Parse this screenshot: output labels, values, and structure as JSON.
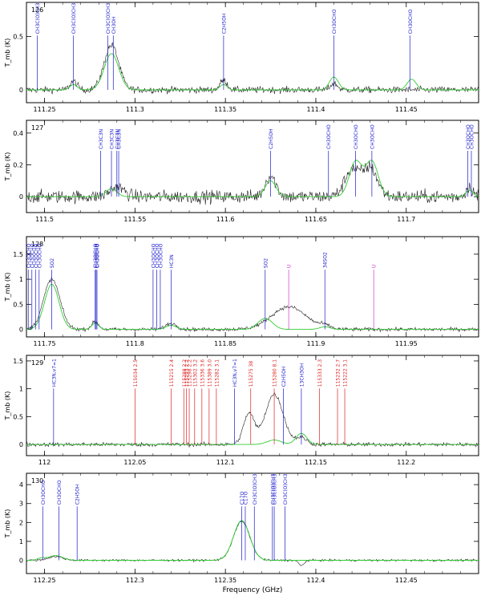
{
  "figure": {
    "xlabel": "Frequency (GHz)",
    "ylabel": "T_mb (K)",
    "colors": {
      "observed": "#222222",
      "model": "#33cc33",
      "blue_label": "#1a1acc",
      "red_label": "#dd2222",
      "magenta_label": "#cc33cc",
      "axis": "#000000"
    }
  },
  "chart_data": [
    {
      "type": "line",
      "panel": "126",
      "xlim": [
        111.24,
        111.49
      ],
      "ylim": [
        -0.12,
        0.82
      ],
      "xticks": [
        111.25,
        111.3,
        111.35,
        111.4,
        111.45
      ],
      "yticks": [
        0,
        0.5
      ],
      "xlabel": "",
      "ylabel": "T_mb (K)",
      "series": [
        {
          "kind": "observed",
          "features": [
            [
              111.287,
              0.42,
              0.004
            ],
            [
              111.266,
              0.08,
              0.002
            ],
            [
              111.349,
              0.09,
              0.002
            ],
            [
              111.41,
              0.06,
              0.002
            ]
          ],
          "noise": 0.03
        },
        {
          "kind": "model",
          "features": [
            [
              111.287,
              0.34,
              0.004
            ],
            [
              111.266,
              0.05,
              0.002
            ],
            [
              111.349,
              0.05,
              0.002
            ],
            [
              111.41,
              0.12,
              0.0025
            ],
            [
              111.453,
              0.1,
              0.0025
            ]
          ]
        }
      ],
      "lines": [
        {
          "f": 111.246,
          "label": "CH3C(O)CH3",
          "color": "blue"
        },
        {
          "f": 111.266,
          "label": "CH3C(O)CH3",
          "color": "blue"
        },
        {
          "f": 111.285,
          "label": "CH3C(O)CH3",
          "color": "blue"
        },
        {
          "f": 111.288,
          "label": "CH3OH",
          "color": "blue"
        },
        {
          "f": 111.349,
          "label": "C2H5OH",
          "color": "blue"
        },
        {
          "f": 111.41,
          "label": "CH3OCHO",
          "color": "blue"
        },
        {
          "f": 111.452,
          "label": "CH3OCHO",
          "color": "blue"
        }
      ]
    },
    {
      "type": "line",
      "panel": "127",
      "xlim": [
        111.49,
        111.74
      ],
      "ylim": [
        -0.1,
        0.48
      ],
      "xticks": [
        111.5,
        111.55,
        111.6,
        111.65,
        111.7
      ],
      "yticks": [
        0,
        0.2,
        0.4
      ],
      "xlabel": "",
      "ylabel": "T_mb (K)",
      "series": [
        {
          "kind": "observed",
          "features": [
            [
              111.54,
              0.06,
              0.004
            ],
            [
              111.625,
              0.13,
              0.003
            ],
            [
              111.67,
              0.17,
              0.004
            ],
            [
              111.68,
              0.18,
              0.004
            ],
            [
              111.735,
              0.06,
              0.002
            ]
          ],
          "noise": 0.04
        },
        {
          "kind": "model",
          "features": [
            [
              111.537,
              0.05,
              0.003
            ],
            [
              111.625,
              0.1,
              0.003
            ],
            [
              111.672,
              0.22,
              0.0035
            ],
            [
              111.681,
              0.22,
              0.0035
            ],
            [
              111.735,
              0.04,
              0.002
            ]
          ]
        }
      ],
      "lines": [
        {
          "f": 111.531,
          "label": "CH3C3N",
          "color": "blue"
        },
        {
          "f": 111.537,
          "label": "CH3C3N",
          "color": "blue"
        },
        {
          "f": 111.54,
          "label": "CH3C3N",
          "color": "blue"
        },
        {
          "f": 111.541,
          "label": "CH3C3N",
          "color": "blue"
        },
        {
          "f": 111.625,
          "label": "C2H5OH",
          "color": "blue"
        },
        {
          "f": 111.657,
          "label": "CH3OCHO",
          "color": "blue"
        },
        {
          "f": 111.672,
          "label": "CH3OCHO",
          "color": "blue"
        },
        {
          "f": 111.681,
          "label": "CH3OCHO",
          "color": "blue"
        },
        {
          "f": 111.734,
          "label": "CH3OCHO",
          "color": "blue"
        },
        {
          "f": 111.736,
          "label": "CH3OCHO",
          "color": "blue"
        }
      ]
    },
    {
      "type": "line",
      "panel": "128",
      "xlim": [
        111.74,
        111.99
      ],
      "ylim": [
        -0.15,
        1.85
      ],
      "xticks": [
        111.75,
        111.8,
        111.85,
        111.9,
        111.95
      ],
      "yticks": [
        0,
        0.5,
        1,
        1.5
      ],
      "xlabel": "",
      "ylabel": "T_mb (K)",
      "series": [
        {
          "kind": "observed",
          "features": [
            [
              111.754,
              1.0,
              0.0045
            ],
            [
              111.778,
              0.15,
              0.002
            ],
            [
              111.82,
              0.12,
              0.003
            ],
            [
              111.885,
              0.45,
              0.0095
            ],
            [
              111.905,
              0.06,
              0.003
            ]
          ],
          "noise": 0.035
        },
        {
          "kind": "model",
          "features": [
            [
              111.754,
              0.9,
              0.004
            ],
            [
              111.778,
              0.12,
              0.002
            ],
            [
              111.82,
              0.08,
              0.003
            ],
            [
              111.872,
              0.22,
              0.004
            ],
            [
              111.905,
              0.05,
              0.003
            ]
          ]
        }
      ],
      "lines": [
        {
          "f": 111.741,
          "label": "CH3OCHO",
          "color": "blue"
        },
        {
          "f": 111.743,
          "label": "CH3OCHO",
          "color": "blue"
        },
        {
          "f": 111.745,
          "label": "CH3OCHO",
          "color": "blue"
        },
        {
          "f": 111.747,
          "label": "CH3OCHO",
          "color": "blue"
        },
        {
          "f": 111.754,
          "label": "SO2",
          "color": "blue"
        },
        {
          "f": 111.778,
          "label": "CH3OCHO",
          "color": "blue"
        },
        {
          "f": 111.7785,
          "label": "CH3OCHO",
          "color": "blue"
        },
        {
          "f": 111.779,
          "label": "CH3OCHO",
          "color": "blue"
        },
        {
          "f": 111.81,
          "label": "CH3OCHO",
          "color": "blue"
        },
        {
          "f": 111.812,
          "label": "CH3OCHO",
          "color": "blue"
        },
        {
          "f": 111.814,
          "label": "CH3OCHO",
          "color": "blue"
        },
        {
          "f": 111.82,
          "label": "HC3N",
          "color": "blue"
        },
        {
          "f": 111.872,
          "label": "SO2",
          "color": "blue"
        },
        {
          "f": 111.885,
          "label": "U",
          "color": "magenta"
        },
        {
          "f": 111.905,
          "label": "34SO2",
          "color": "blue"
        },
        {
          "f": 111.932,
          "label": "U",
          "color": "magenta"
        }
      ]
    },
    {
      "type": "line",
      "panel": "129",
      "xlim": [
        111.99,
        112.24
      ],
      "ylim": [
        -0.2,
        1.6
      ],
      "xticks": [
        112.0,
        112.05,
        112.1,
        112.15,
        112.2
      ],
      "yticks": [
        0,
        0.5,
        1,
        1.5
      ],
      "xlabel": "",
      "ylabel": "T_mb (K)",
      "series": [
        {
          "kind": "observed",
          "features": [
            [
              112.113,
              0.55,
              0.003
            ],
            [
              112.127,
              0.9,
              0.005
            ],
            [
              112.142,
              0.12,
              0.003
            ]
          ],
          "noise": 0.035
        },
        {
          "kind": "model",
          "features": [
            [
              112.127,
              0.08,
              0.004
            ],
            [
              112.142,
              0.2,
              0.003
            ]
          ]
        }
      ],
      "lines": [
        {
          "f": 112.005,
          "label": "HC3N,v7=1",
          "color": "blue"
        },
        {
          "f": 112.05,
          "label": "115034 2.5",
          "color": "red"
        },
        {
          "f": 112.07,
          "label": "115215 2.4",
          "color": "red"
        },
        {
          "f": 112.077,
          "label": "115288 2.2",
          "color": "red"
        },
        {
          "f": 112.0785,
          "label": "115293 2.2",
          "color": "red"
        },
        {
          "f": 112.08,
          "label": "115298 2.2",
          "color": "red"
        },
        {
          "f": 112.083,
          "label": "115302 3.2",
          "color": "red"
        },
        {
          "f": 112.087,
          "label": "115336 3.6",
          "color": "red"
        },
        {
          "f": 112.091,
          "label": "115389 3.0",
          "color": "red"
        },
        {
          "f": 112.095,
          "label": "115282 3.1",
          "color": "red"
        },
        {
          "f": 112.105,
          "label": "HC3N,v7=1",
          "color": "blue"
        },
        {
          "f": 112.114,
          "label": "115275 38",
          "color": "red"
        },
        {
          "f": 112.127,
          "label": "115280 8.1",
          "color": "red"
        },
        {
          "f": 112.132,
          "label": "C2H5OH",
          "color": "blue"
        },
        {
          "f": 112.142,
          "label": "13CH3OH",
          "color": "blue"
        },
        {
          "f": 112.152,
          "label": "115333 2.3",
          "color": "red"
        },
        {
          "f": 112.162,
          "label": "115232 2.7",
          "color": "red"
        },
        {
          "f": 112.166,
          "label": "115222 3.1",
          "color": "red"
        }
      ]
    },
    {
      "type": "line",
      "panel": "130",
      "xlim": [
        112.24,
        112.49
      ],
      "ylim": [
        -0.7,
        4.6
      ],
      "xticks": [
        112.25,
        112.3,
        112.35,
        112.4,
        112.45
      ],
      "yticks": [
        0,
        1,
        2,
        3,
        4
      ],
      "xlabel": "Frequency (GHz)",
      "ylabel": "T_mb (K)",
      "series": [
        {
          "kind": "observed",
          "features": [
            [
              112.359,
              2.05,
              0.0045
            ],
            [
              112.256,
              0.2,
              0.004
            ],
            [
              112.392,
              -0.28,
              0.0015
            ]
          ],
          "noise": 0.05
        },
        {
          "kind": "model",
          "features": [
            [
              112.359,
              2.1,
              0.0045
            ],
            [
              112.256,
              0.25,
              0.004
            ],
            [
              112.248,
              0.1,
              0.002
            ]
          ]
        }
      ],
      "lines": [
        {
          "f": 112.249,
          "label": "CH3OCHO",
          "color": "blue"
        },
        {
          "f": 112.258,
          "label": "CH3OCHO",
          "color": "blue"
        },
        {
          "f": 112.268,
          "label": "C2H5OH",
          "color": "blue"
        },
        {
          "f": 112.359,
          "label": "C17O",
          "color": "blue"
        },
        {
          "f": 112.361,
          "label": "C17O",
          "color": "blue"
        },
        {
          "f": 112.366,
          "label": "CH3C(O)CH3",
          "color": "blue"
        },
        {
          "f": 112.376,
          "label": "CH3C(O)CH3",
          "color": "blue"
        },
        {
          "f": 112.377,
          "label": "CH3C(O)CH3",
          "color": "blue"
        },
        {
          "f": 112.383,
          "label": "CH3C(O)CH3",
          "color": "blue"
        }
      ]
    }
  ]
}
